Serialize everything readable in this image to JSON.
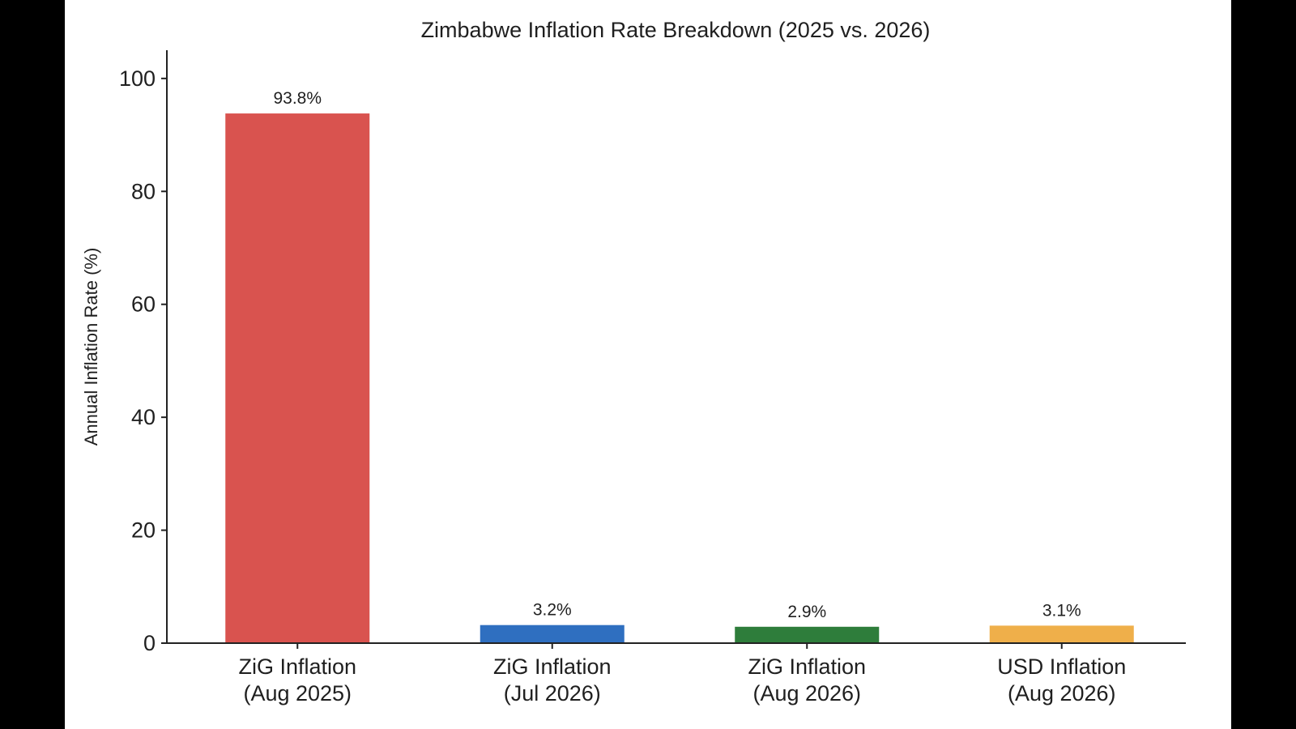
{
  "chart_data": {
    "type": "bar",
    "title": "Zimbabwe Inflation Rate Breakdown (2025 vs. 2026)",
    "xlabel": "",
    "ylabel": "Annual Inflation Rate (%)",
    "ylim": [
      0,
      105
    ],
    "yticks": [
      0,
      20,
      40,
      60,
      80,
      100
    ],
    "grid": false,
    "categories": [
      [
        "ZiG Inflation",
        "(Aug 2025)"
      ],
      [
        "ZiG Inflation",
        "(Jul 2026)"
      ],
      [
        "ZiG Inflation",
        "(Aug 2026)"
      ],
      [
        "USD Inflation",
        "(Aug 2026)"
      ]
    ],
    "values": [
      93.8,
      3.2,
      2.9,
      3.1
    ],
    "data_labels": [
      "93.8%",
      "3.2%",
      "2.9%",
      "3.1%"
    ],
    "colors": [
      "#d9534f",
      "#2f6fc0",
      "#2e7d3b",
      "#efaf4a"
    ]
  }
}
